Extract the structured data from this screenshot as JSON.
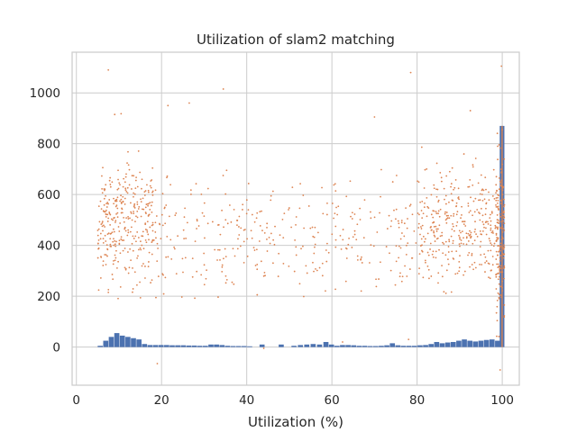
{
  "chart_data": {
    "type": "bar",
    "title": "Utilization of slam2 matching",
    "xlabel": "Utilization (%)",
    "ylabel": "",
    "xlim": [
      -1,
      104
    ],
    "ylim": [
      -150,
      1160
    ],
    "xticks": [
      0,
      20,
      40,
      60,
      80,
      100
    ],
    "yticks": [
      0,
      200,
      400,
      600,
      800,
      1000
    ],
    "grid": true,
    "legend": "none",
    "colors": {
      "bars": "#4c72b0",
      "scatter": "#dd8452",
      "grid": "#cccccc",
      "frame": "#cccccc"
    },
    "histogram": {
      "bin_width": 1.3,
      "bins_start": [
        5,
        6.3,
        7.6,
        8.9,
        10.2,
        11.5,
        12.8,
        14.1,
        15.4,
        16.7,
        18,
        19.3,
        20.6,
        21.9,
        23.2,
        24.5,
        25.8,
        27.1,
        28.4,
        29.7,
        31,
        32.3,
        33.6,
        34.9,
        36.2,
        37.5,
        38.8,
        40.1,
        43,
        47.5,
        50.5,
        52,
        53.5,
        55,
        56.5,
        58,
        59.3,
        60.6,
        61.9,
        63.2,
        64.5,
        65.8,
        67.1,
        68.4,
        69.7,
        71,
        72.3,
        73.6,
        74.9,
        76.2,
        77.5,
        78.8,
        80.1,
        81.4,
        82.7,
        84,
        85.3,
        86.6,
        87.9,
        89.2,
        90.5,
        91.8,
        93.1,
        94.4,
        95.7,
        97,
        98.3
      ],
      "counts": [
        5,
        25,
        40,
        55,
        45,
        40,
        35,
        30,
        12,
        8,
        8,
        8,
        8,
        7,
        7,
        7,
        6,
        6,
        5,
        5,
        10,
        10,
        8,
        5,
        4,
        4,
        4,
        3,
        10,
        10,
        5,
        8,
        10,
        12,
        10,
        20,
        10,
        5,
        8,
        8,
        7,
        5,
        5,
        4,
        4,
        5,
        7,
        15,
        7,
        5,
        5,
        5,
        7,
        8,
        12,
        20,
        15,
        18,
        20,
        25,
        30,
        25,
        22,
        25,
        28,
        30,
        25
      ],
      "final_bar": {
        "x": 99.4,
        "count": 870
      }
    },
    "scatter": {
      "clusters": [
        {
          "x_range": [
            5,
            18
          ],
          "y_range": [
            150,
            820
          ],
          "n": 320
        },
        {
          "x_range": [
            18,
            80
          ],
          "y_range": [
            110,
            760
          ],
          "n": 330
        },
        {
          "x_range": [
            80,
            99
          ],
          "y_range": [
            150,
            820
          ],
          "n": 330
        },
        {
          "x_range": [
            98.5,
            100.5
          ],
          "y_range": [
            -90,
            910
          ],
          "n": 160
        }
      ],
      "outliers": [
        {
          "x": 7.5,
          "y": 1090
        },
        {
          "x": 34.5,
          "y": 1015
        },
        {
          "x": 78.5,
          "y": 1080
        },
        {
          "x": 99.8,
          "y": 1105
        },
        {
          "x": 19,
          "y": -65
        },
        {
          "x": 99.5,
          "y": -90
        },
        {
          "x": 9,
          "y": 915
        },
        {
          "x": 10.5,
          "y": 918
        },
        {
          "x": 21.5,
          "y": 950
        },
        {
          "x": 26.5,
          "y": 960
        },
        {
          "x": 70,
          "y": 905
        },
        {
          "x": 92.5,
          "y": 930
        },
        {
          "x": 44,
          "y": -5
        },
        {
          "x": 78,
          "y": 30
        },
        {
          "x": 62.5,
          "y": 20
        }
      ]
    }
  }
}
